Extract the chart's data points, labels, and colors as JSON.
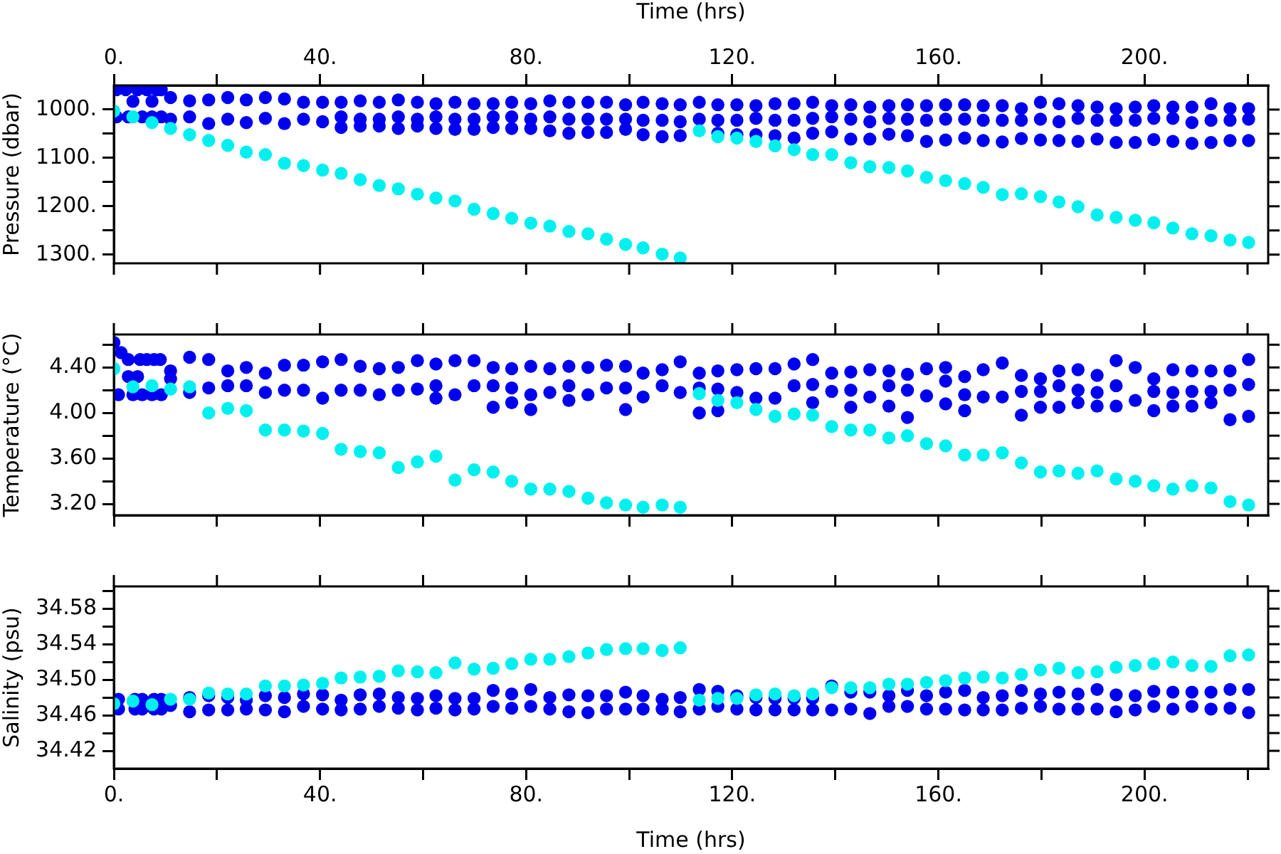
{
  "chart_data": [
    {
      "type": "scatter",
      "ylabel": "Pressure (dbar)",
      "xlabel": "Time (hrs)",
      "xlim": [
        0,
        224
      ],
      "xticks": [
        {
          "value": 0,
          "label": "0."
        },
        {
          "value": 20,
          "label": null
        },
        {
          "value": 40,
          "label": "40."
        },
        {
          "value": 60,
          "label": null
        },
        {
          "value": 80,
          "label": "80."
        },
        {
          "value": 100,
          "label": null
        },
        {
          "value": 120,
          "label": "120."
        },
        {
          "value": 140,
          "label": null
        },
        {
          "value": 160,
          "label": "160."
        },
        {
          "value": 180,
          "label": null
        },
        {
          "value": 200,
          "label": "200."
        },
        {
          "value": 220,
          "label": null
        }
      ],
      "ylim": [
        1318,
        950
      ],
      "yticks": [
        {
          "value": 1000,
          "label": "1000."
        },
        {
          "value": 1050,
          "label": null
        },
        {
          "value": 1100,
          "label": "1100."
        },
        {
          "value": 1150,
          "label": null
        },
        {
          "value": 1200,
          "label": "1200."
        },
        {
          "value": 1250,
          "label": null
        },
        {
          "value": 1300,
          "label": "1300."
        }
      ],
      "marker": "circle",
      "series": [
        {
          "color": "#0000f0",
          "x": [
            0.5,
            2.3,
            4.6,
            6.4,
            8.3,
            9.2,
            3.7,
            7.4,
            0.5,
            2.8,
            5.5,
            7.4,
            9.2,
            11.0,
            11.0,
            14.7,
            14.7,
            18.4,
            18.4,
            22.1,
            22.1,
            25.7,
            25.7,
            29.4,
            29.4,
            33.1,
            33.1,
            36.8,
            36.8,
            40.5,
            40.5,
            44.1,
            44.1,
            44.1,
            47.8,
            47.8,
            47.8,
            51.5,
            51.5,
            51.5,
            55.2,
            55.2,
            55.2,
            58.9,
            58.9,
            58.9,
            62.5,
            62.5,
            62.5,
            66.2,
            66.2,
            66.2,
            69.9,
            69.9,
            69.9,
            73.6,
            73.6,
            73.6,
            77.2,
            77.2,
            77.2,
            80.9,
            80.9,
            80.9,
            84.6,
            84.6,
            84.6,
            88.3,
            88.3,
            88.3,
            92.0,
            92.0,
            92.0,
            95.6,
            95.6,
            95.6,
            99.3,
            99.3,
            99.3,
            102.7,
            102.7,
            102.7,
            106.4,
            106.4,
            106.4,
            109.9,
            109.9,
            109.9,
            113.6,
            113.6,
            117.2,
            117.2,
            117.2,
            120.9,
            120.9,
            120.9,
            124.6,
            124.6,
            124.6,
            128.3,
            128.3,
            128.3,
            132.0,
            132.0,
            132.0,
            135.6,
            135.6,
            135.6,
            139.3,
            139.3,
            139.3,
            143.0,
            143.0,
            143.0,
            146.7,
            146.7,
            146.7,
            150.4,
            150.4,
            150.4,
            154.0,
            154.0,
            154.0,
            157.7,
            157.7,
            157.7,
            161.4,
            161.4,
            161.4,
            165.1,
            165.1,
            165.1,
            168.7,
            168.7,
            168.7,
            172.4,
            172.4,
            172.4,
            176.1,
            176.1,
            176.1,
            179.8,
            179.8,
            179.8,
            183.4,
            183.4,
            183.4,
            187.1,
            187.1,
            187.1,
            190.8,
            190.8,
            190.8,
            194.5,
            194.5,
            194.5,
            198.2,
            198.2,
            198.2,
            201.8,
            201.8,
            201.8,
            205.5,
            205.5,
            205.5,
            209.2,
            209.2,
            209.2,
            212.9,
            212.9,
            212.9,
            216.6,
            216.6,
            216.6,
            220.2,
            220.2,
            220.2
          ],
          "values": [
            959,
            959,
            959,
            959,
            959,
            959,
            983,
            983,
            1015,
            1015,
            1015,
            1015,
            1015,
            975,
            1020,
            982,
            1015,
            980,
            1029,
            975,
            1020,
            980,
            1027,
            975,
            1018,
            978,
            1029,
            985,
            1020,
            985,
            1025,
            985,
            1015,
            1037,
            982,
            1020,
            1034,
            985,
            1020,
            1034,
            980,
            1015,
            1039,
            985,
            1020,
            1034,
            988,
            1015,
            1039,
            985,
            1020,
            1041,
            988,
            1020,
            1041,
            988,
            1015,
            1037,
            985,
            1015,
            1039,
            988,
            1020,
            1039,
            982,
            1015,
            1044,
            985,
            1020,
            1049,
            985,
            1020,
            1047,
            985,
            1020,
            1047,
            990,
            1020,
            1041,
            985,
            1022,
            1052,
            988,
            1022,
            1056,
            990,
            1025,
            1054,
            985,
            1020,
            990,
            1022,
            1049,
            990,
            1022,
            1052,
            992,
            1018,
            1052,
            988,
            1022,
            1054,
            988,
            1022,
            1059,
            985,
            1018,
            1049,
            992,
            1015,
            1046,
            990,
            1020,
            1061,
            995,
            1025,
            1061,
            992,
            1018,
            1051,
            990,
            1020,
            1054,
            992,
            1022,
            1066,
            990,
            1020,
            1063,
            990,
            1020,
            1059,
            992,
            1022,
            1064,
            992,
            1022,
            1067,
            998,
            1022,
            1060,
            985,
            1020,
            1063,
            988,
            1025,
            1064,
            992,
            1018,
            1066,
            995,
            1022,
            1061,
            998,
            1022,
            1068,
            995,
            1022,
            1068,
            992,
            1018,
            1062,
            995,
            1018,
            1066,
            995,
            1027,
            1070,
            988,
            1022,
            1068,
            998,
            1022,
            1064,
            998,
            1020,
            1064
          ]
        },
        {
          "color": "#00f0f0",
          "x": [
            0,
            3.7,
            7.4,
            11.0,
            14.7,
            18.4,
            22.1,
            25.7,
            29.4,
            33.1,
            36.8,
            40.5,
            44.1,
            47.8,
            51.5,
            55.2,
            58.9,
            62.5,
            66.2,
            69.9,
            73.6,
            77.2,
            80.9,
            84.6,
            88.3,
            92.0,
            95.6,
            99.3,
            102.7,
            106.4,
            109.9,
            113.6,
            117.2,
            120.9,
            124.6,
            128.3,
            132.0,
            135.6,
            139.3,
            143.0,
            146.7,
            150.4,
            154.0,
            157.7,
            161.4,
            165.1,
            168.7,
            172.4,
            176.1,
            179.8,
            183.4,
            187.1,
            190.8,
            194.5,
            198.2,
            201.8,
            205.5,
            209.2,
            212.9,
            216.6,
            220.2
          ],
          "values": [
            1003,
            1015,
            1027,
            1039,
            1052,
            1064,
            1074,
            1088,
            1093,
            1111,
            1116,
            1125,
            1132,
            1145,
            1157,
            1164,
            1175,
            1183,
            1189,
            1206,
            1215,
            1225,
            1235,
            1241,
            1252,
            1257,
            1268,
            1279,
            1286,
            1299,
            1307,
            1044,
            1056,
            1059,
            1066,
            1075,
            1083,
            1093,
            1093,
            1110,
            1118,
            1120,
            1127,
            1140,
            1147,
            1153,
            1161,
            1176,
            1174,
            1180,
            1191,
            1201,
            1218,
            1223,
            1229,
            1234,
            1245,
            1257,
            1261,
            1270,
            1275
          ]
        }
      ]
    },
    {
      "type": "scatter",
      "ylabel": "Temperature (°C)",
      "xlim": [
        0,
        224
      ],
      "xticks": [
        {
          "value": 0,
          "label": null
        },
        {
          "value": 20,
          "label": null
        },
        {
          "value": 40,
          "label": null
        },
        {
          "value": 60,
          "label": null
        },
        {
          "value": 80,
          "label": null
        },
        {
          "value": 100,
          "label": null
        },
        {
          "value": 120,
          "label": null
        },
        {
          "value": 140,
          "label": null
        },
        {
          "value": 160,
          "label": null
        },
        {
          "value": 180,
          "label": null
        },
        {
          "value": 200,
          "label": null
        },
        {
          "value": 220,
          "label": null
        }
      ],
      "tick_labels": "y",
      "ylim": [
        3.1,
        4.69
      ],
      "yticks": [
        {
          "value": 3.2,
          "label": "3.20"
        },
        {
          "value": 3.4,
          "label": null
        },
        {
          "value": 3.6,
          "label": "3.60"
        },
        {
          "value": 3.8,
          "label": null
        },
        {
          "value": 4.0,
          "label": "4.00"
        },
        {
          "value": 4.2,
          "label": null
        },
        {
          "value": 4.4,
          "label": "4.40"
        },
        {
          "value": 4.6,
          "label": null
        }
      ],
      "marker": "circle",
      "series": [
        {
          "color": "#0000f0",
          "x": [
            0,
            1.4,
            2.8,
            5.1,
            6.4,
            7.8,
            9.0,
            2.8,
            4.6,
            0.9,
            3.7,
            5.5,
            7.4,
            9.2,
            11.0,
            11.0,
            14.7,
            14.7,
            18.4,
            18.4,
            22.1,
            22.1,
            25.7,
            25.7,
            29.4,
            29.4,
            33.1,
            33.1,
            36.8,
            36.8,
            40.5,
            40.5,
            44.1,
            44.1,
            47.8,
            47.8,
            51.5,
            51.5,
            55.2,
            55.2,
            58.9,
            58.9,
            62.5,
            62.5,
            62.5,
            66.2,
            66.2,
            69.9,
            69.9,
            73.6,
            73.6,
            73.6,
            77.2,
            77.2,
            77.2,
            80.9,
            80.9,
            80.9,
            84.6,
            84.6,
            88.3,
            88.3,
            88.3,
            92.0,
            92.0,
            95.6,
            95.6,
            99.3,
            99.3,
            99.3,
            102.7,
            102.7,
            106.4,
            106.4,
            109.9,
            109.9,
            113.6,
            113.6,
            113.6,
            117.2,
            117.2,
            117.2,
            120.9,
            120.9,
            124.6,
            124.6,
            128.3,
            128.3,
            132.0,
            132.0,
            135.6,
            135.6,
            135.6,
            139.3,
            139.3,
            143.0,
            143.0,
            143.0,
            146.7,
            146.7,
            150.4,
            150.4,
            150.4,
            154.0,
            154.0,
            154.0,
            157.7,
            157.7,
            161.4,
            161.4,
            161.4,
            165.1,
            165.1,
            165.1,
            168.7,
            168.7,
            172.4,
            172.4,
            176.1,
            176.1,
            176.1,
            179.8,
            179.8,
            179.8,
            183.4,
            183.4,
            183.4,
            187.1,
            187.1,
            187.1,
            190.8,
            190.8,
            190.8,
            194.5,
            194.5,
            194.5,
            198.2,
            198.2,
            201.8,
            201.8,
            201.8,
            205.5,
            205.5,
            205.5,
            209.2,
            209.2,
            209.2,
            212.9,
            212.9,
            212.9,
            216.6,
            216.6,
            216.6,
            220.2,
            220.2,
            220.2
          ],
          "values": [
            4.62,
            4.53,
            4.47,
            4.47,
            4.47,
            4.47,
            4.47,
            4.32,
            4.32,
            4.16,
            4.16,
            4.16,
            4.16,
            4.16,
            4.37,
            4.3,
            4.49,
            4.18,
            4.47,
            4.22,
            4.37,
            4.24,
            4.4,
            4.24,
            4.35,
            4.18,
            4.42,
            4.2,
            4.42,
            4.2,
            4.45,
            4.13,
            4.47,
            4.2,
            4.41,
            4.2,
            4.39,
            4.16,
            4.4,
            4.2,
            4.46,
            4.21,
            4.43,
            4.24,
            4.13,
            4.46,
            4.16,
            4.46,
            4.24,
            4.4,
            4.24,
            4.05,
            4.39,
            4.22,
            4.09,
            4.41,
            4.16,
            4.03,
            4.39,
            4.18,
            4.41,
            4.24,
            4.11,
            4.4,
            4.16,
            4.42,
            4.22,
            4.41,
            4.22,
            4.03,
            4.35,
            4.14,
            4.38,
            4.24,
            4.45,
            4.18,
            4.35,
            4.22,
            4.0,
            4.37,
            4.21,
            4.02,
            4.38,
            4.18,
            4.39,
            4.13,
            4.39,
            4.13,
            4.43,
            4.24,
            4.47,
            4.25,
            4.09,
            4.35,
            4.19,
            4.36,
            4.2,
            4.05,
            4.38,
            4.14,
            4.37,
            4.24,
            4.06,
            4.34,
            4.2,
            3.96,
            4.39,
            4.15,
            4.4,
            4.28,
            4.08,
            4.32,
            4.16,
            4.02,
            4.38,
            4.14,
            4.44,
            4.14,
            4.33,
            4.19,
            3.98,
            4.3,
            4.19,
            4.05,
            4.37,
            4.24,
            4.05,
            4.38,
            4.2,
            4.09,
            4.33,
            4.18,
            4.06,
            4.46,
            4.24,
            4.06,
            4.4,
            4.11,
            4.3,
            4.19,
            4.02,
            4.38,
            4.18,
            4.06,
            4.37,
            4.19,
            4.06,
            4.37,
            4.19,
            4.09,
            4.37,
            4.2,
            3.94,
            4.47,
            4.25,
            3.97
          ]
        },
        {
          "color": "#00f0f0",
          "x": [
            0,
            3.7,
            7.4,
            11.0,
            14.7,
            18.4,
            22.1,
            25.7,
            29.4,
            33.1,
            36.8,
            40.5,
            44.1,
            47.8,
            51.5,
            55.2,
            58.9,
            62.5,
            66.2,
            69.9,
            73.6,
            77.2,
            80.9,
            84.6,
            88.3,
            92.0,
            95.6,
            99.3,
            102.7,
            106.4,
            109.9,
            113.6,
            117.2,
            120.9,
            124.6,
            128.3,
            132.0,
            135.6,
            139.3,
            143.0,
            146.7,
            150.4,
            154.0,
            157.7,
            161.4,
            165.1,
            168.7,
            172.4,
            176.1,
            179.8,
            183.4,
            187.1,
            190.8,
            194.5,
            198.2,
            201.8,
            205.5,
            209.2,
            212.9,
            216.6,
            220.2
          ],
          "values": [
            4.39,
            4.23,
            4.24,
            4.21,
            4.23,
            4.0,
            4.04,
            4.02,
            3.85,
            3.85,
            3.84,
            3.82,
            3.68,
            3.66,
            3.65,
            3.52,
            3.57,
            3.62,
            3.41,
            3.5,
            3.48,
            3.4,
            3.33,
            3.33,
            3.31,
            3.25,
            3.21,
            3.19,
            3.17,
            3.19,
            3.17,
            4.17,
            4.11,
            4.09,
            4.03,
            3.97,
            3.99,
            3.98,
            3.88,
            3.85,
            3.85,
            3.78,
            3.8,
            3.73,
            3.71,
            3.63,
            3.63,
            3.65,
            3.56,
            3.48,
            3.49,
            3.47,
            3.49,
            3.42,
            3.4,
            3.36,
            3.33,
            3.36,
            3.34,
            3.22,
            3.19
          ]
        }
      ]
    },
    {
      "type": "scatter",
      "ylabel": "Salinity (psu)",
      "xlabel": "Time (hrs)",
      "xlim": [
        0,
        224
      ],
      "xticks": [
        {
          "value": 0,
          "label": "0."
        },
        {
          "value": 20,
          "label": null
        },
        {
          "value": 40,
          "label": "40."
        },
        {
          "value": 60,
          "label": null
        },
        {
          "value": 80,
          "label": "80."
        },
        {
          "value": 100,
          "label": null
        },
        {
          "value": 120,
          "label": "120."
        },
        {
          "value": 140,
          "label": null
        },
        {
          "value": 160,
          "label": "160."
        },
        {
          "value": 180,
          "label": null
        },
        {
          "value": 200,
          "label": "200."
        },
        {
          "value": 220,
          "label": null
        }
      ],
      "ylim": [
        34.4,
        34.605
      ],
      "yticks": [
        {
          "value": 34.42,
          "label": "34.42"
        },
        {
          "value": 34.44,
          "label": null
        },
        {
          "value": 34.46,
          "label": "34.46"
        },
        {
          "value": 34.48,
          "label": null
        },
        {
          "value": 34.5,
          "label": "34.50"
        },
        {
          "value": 34.52,
          "label": null
        },
        {
          "value": 34.54,
          "label": "34.54"
        },
        {
          "value": 34.56,
          "label": null
        },
        {
          "value": 34.58,
          "label": "34.58"
        },
        {
          "value": 34.6,
          "label": null
        }
      ],
      "marker": "circle",
      "series": [
        {
          "color": "#0000f0",
          "x": [
            0.9,
            4.1,
            5.5,
            7.8,
            9.2,
            0.9,
            4.1,
            5.5,
            7.8,
            9.2,
            11.0,
            14.7,
            14.7,
            18.4,
            18.4,
            22.1,
            22.1,
            25.7,
            25.7,
            29.4,
            29.4,
            33.1,
            33.1,
            36.8,
            36.8,
            40.5,
            40.5,
            44.1,
            44.1,
            47.8,
            47.8,
            51.5,
            51.5,
            55.2,
            55.2,
            58.9,
            58.9,
            62.5,
            62.5,
            66.2,
            66.2,
            69.9,
            69.9,
            73.6,
            73.6,
            77.2,
            77.2,
            80.9,
            80.9,
            84.6,
            84.6,
            88.3,
            88.3,
            92.0,
            92.0,
            95.6,
            95.6,
            99.3,
            99.3,
            102.7,
            102.7,
            106.4,
            106.4,
            109.9,
            109.9,
            113.6,
            113.6,
            117.2,
            117.2,
            120.9,
            120.9,
            124.6,
            124.6,
            128.3,
            128.3,
            132.0,
            132.0,
            135.6,
            135.6,
            139.3,
            139.3,
            143.0,
            143.0,
            146.7,
            146.7,
            150.4,
            150.4,
            154.0,
            154.0,
            157.7,
            157.7,
            161.4,
            161.4,
            165.1,
            165.1,
            168.7,
            168.7,
            172.4,
            172.4,
            176.1,
            176.1,
            179.8,
            179.8,
            183.4,
            183.4,
            187.1,
            187.1,
            190.8,
            190.8,
            194.5,
            194.5,
            198.2,
            198.2,
            201.8,
            201.8,
            205.5,
            205.5,
            209.2,
            209.2,
            212.9,
            212.9,
            216.6,
            216.6,
            220.2,
            220.2
          ],
          "values": [
            34.478,
            34.478,
            34.478,
            34.478,
            34.478,
            34.467,
            34.467,
            34.467,
            34.467,
            34.467,
            34.471,
            34.48,
            34.464,
            34.482,
            34.466,
            34.48,
            34.466,
            34.477,
            34.467,
            34.482,
            34.466,
            34.48,
            34.464,
            34.484,
            34.47,
            34.483,
            34.467,
            34.477,
            34.466,
            34.483,
            34.467,
            34.484,
            34.47,
            34.48,
            34.468,
            34.479,
            34.466,
            34.482,
            34.468,
            34.479,
            34.466,
            34.479,
            34.467,
            34.488,
            34.47,
            34.484,
            34.468,
            34.489,
            34.47,
            34.48,
            34.467,
            34.483,
            34.464,
            34.482,
            34.463,
            34.482,
            34.467,
            34.486,
            34.467,
            34.482,
            34.467,
            34.478,
            34.467,
            34.48,
            34.464,
            34.489,
            34.467,
            34.487,
            34.47,
            34.482,
            34.467,
            34.48,
            34.466,
            34.479,
            34.466,
            34.479,
            34.466,
            34.479,
            34.466,
            34.493,
            34.466,
            34.486,
            34.467,
            34.486,
            34.462,
            34.482,
            34.47,
            34.488,
            34.47,
            34.482,
            34.467,
            34.486,
            34.467,
            34.488,
            34.466,
            34.48,
            34.466,
            34.482,
            34.466,
            34.488,
            34.468,
            34.484,
            34.47,
            34.486,
            34.467,
            34.484,
            34.467,
            34.489,
            34.467,
            34.483,
            34.464,
            34.482,
            34.466,
            34.487,
            34.47,
            34.486,
            34.467,
            34.486,
            34.47,
            34.486,
            34.467,
            34.489,
            34.468,
            34.489,
            34.463
          ]
        },
        {
          "color": "#00f0f0",
          "x": [
            0,
            3.7,
            7.4,
            11.0,
            14.7,
            18.4,
            22.1,
            25.7,
            29.4,
            33.1,
            36.8,
            40.5,
            44.1,
            47.8,
            51.5,
            55.2,
            58.9,
            62.5,
            66.2,
            69.9,
            73.6,
            77.2,
            80.9,
            84.6,
            88.3,
            92.0,
            95.6,
            99.3,
            102.7,
            106.4,
            109.9,
            113.6,
            117.2,
            120.9,
            124.6,
            128.3,
            132.0,
            135.6,
            139.3,
            143.0,
            146.7,
            150.4,
            154.0,
            157.7,
            161.4,
            165.1,
            168.7,
            172.4,
            176.1,
            179.8,
            183.4,
            187.1,
            190.8,
            194.5,
            198.2,
            201.8,
            205.5,
            209.2,
            212.9,
            216.6,
            220.2
          ],
          "values": [
            34.473,
            34.476,
            34.472,
            34.478,
            34.478,
            34.485,
            34.484,
            34.484,
            34.493,
            34.493,
            34.494,
            34.496,
            34.502,
            34.503,
            34.504,
            34.51,
            34.509,
            34.508,
            34.519,
            34.512,
            34.513,
            34.518,
            34.523,
            34.523,
            34.526,
            34.53,
            34.534,
            34.535,
            34.535,
            34.533,
            34.536,
            34.477,
            34.479,
            34.479,
            34.483,
            34.484,
            34.482,
            34.484,
            34.491,
            34.491,
            34.491,
            34.495,
            34.495,
            34.497,
            34.499,
            34.502,
            34.503,
            34.502,
            34.506,
            34.511,
            34.513,
            34.508,
            34.509,
            34.514,
            34.516,
            34.518,
            34.52,
            34.516,
            34.515,
            34.527,
            34.528
          ]
        }
      ]
    }
  ]
}
